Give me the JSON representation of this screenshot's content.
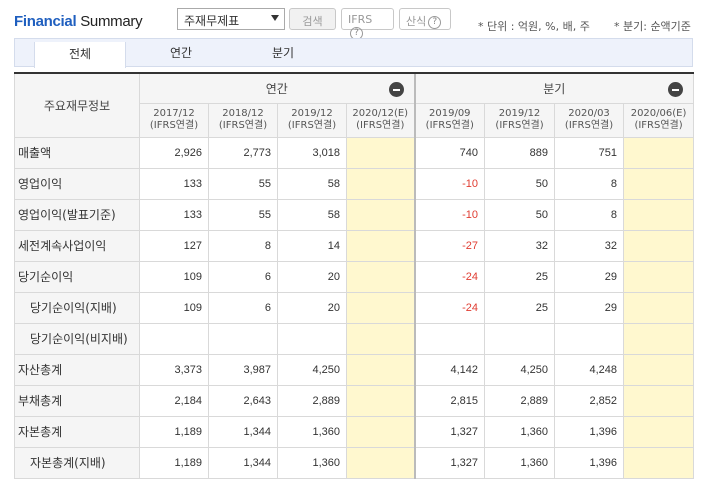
{
  "header": {
    "title_part1": "Financial",
    "title_part2": "Summary",
    "select_value": "주재무제표",
    "search_label": "검색",
    "ifrs_label": "IFRS",
    "sansik_label": "산식",
    "help_glyph": "?",
    "unit_note": "* 단위 : 억원, %, 배, 주",
    "quarter_note": "* 분기: 순액기준"
  },
  "tabs": [
    {
      "label": "전체",
      "active": true
    },
    {
      "label": "연간",
      "active": false
    },
    {
      "label": "분기",
      "active": false
    }
  ],
  "table": {
    "row_header": "주요재무정보",
    "annual_group": "연간",
    "quarter_group": "분기",
    "periods": [
      {
        "date": "2017/12",
        "basis": "(IFRS연결)"
      },
      {
        "date": "2018/12",
        "basis": "(IFRS연결)"
      },
      {
        "date": "2019/12",
        "basis": "(IFRS연결)"
      },
      {
        "date": "2020/12(E)",
        "basis": "(IFRS연결)"
      },
      {
        "date": "2019/09",
        "basis": "(IFRS연결)"
      },
      {
        "date": "2019/12",
        "basis": "(IFRS연결)"
      },
      {
        "date": "2020/03",
        "basis": "(IFRS연결)"
      },
      {
        "date": "2020/06(E)",
        "basis": "(IFRS연결)"
      }
    ],
    "rows": [
      {
        "label": "매출액",
        "sub": false,
        "values": [
          "2,926",
          "2,773",
          "3,018",
          "",
          "740",
          "889",
          "751",
          ""
        ]
      },
      {
        "label": "영업이익",
        "sub": false,
        "values": [
          "133",
          "55",
          "58",
          "",
          "-10",
          "50",
          "8",
          ""
        ]
      },
      {
        "label": "영업이익(발표기준)",
        "sub": false,
        "values": [
          "133",
          "55",
          "58",
          "",
          "-10",
          "50",
          "8",
          ""
        ]
      },
      {
        "label": "세전계속사업이익",
        "sub": false,
        "values": [
          "127",
          "8",
          "14",
          "",
          "-27",
          "32",
          "32",
          ""
        ]
      },
      {
        "label": "당기순이익",
        "sub": false,
        "values": [
          "109",
          "6",
          "20",
          "",
          "-24",
          "25",
          "29",
          ""
        ]
      },
      {
        "label": "당기순이익(지배)",
        "sub": true,
        "values": [
          "109",
          "6",
          "20",
          "",
          "-24",
          "25",
          "29",
          ""
        ]
      },
      {
        "label": "당기순이익(비지배)",
        "sub": true,
        "values": [
          "",
          "",
          "",
          "",
          "",
          "",
          "",
          ""
        ]
      },
      {
        "label": "자산총계",
        "sub": false,
        "values": [
          "3,373",
          "3,987",
          "4,250",
          "",
          "4,142",
          "4,250",
          "4,248",
          ""
        ]
      },
      {
        "label": "부채총계",
        "sub": false,
        "values": [
          "2,184",
          "2,643",
          "2,889",
          "",
          "2,815",
          "2,889",
          "2,852",
          ""
        ]
      },
      {
        "label": "자본총계",
        "sub": false,
        "values": [
          "1,189",
          "1,344",
          "1,360",
          "",
          "1,327",
          "1,360",
          "1,396",
          ""
        ]
      },
      {
        "label": "자본총계(지배)",
        "sub": true,
        "values": [
          "1,189",
          "1,344",
          "1,360",
          "",
          "1,327",
          "1,360",
          "1,396",
          ""
        ]
      }
    ]
  },
  "colors": {
    "brand_blue": "#1f5fbf",
    "negative_red": "#e03c31",
    "estimate_bg": "#fff8cf"
  }
}
